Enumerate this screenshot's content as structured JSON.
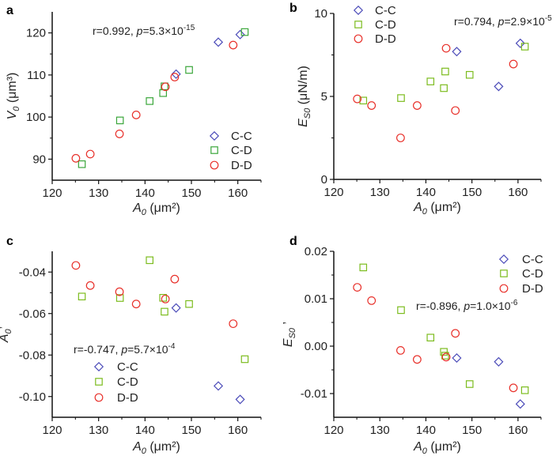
{
  "colors": {
    "C-C": "#4a4ab8",
    "C-D": "#3aa63a",
    "C-D-light": "#7cbc1e",
    "D-D": "#e8302a"
  },
  "chart_data": [
    {
      "type": "scatter",
      "panel": "a",
      "xlabel": {
        "var": "A",
        "sub": "0",
        "unit": " (μm²)"
      },
      "ylabel": {
        "var": "V",
        "sub": "0",
        "unit": " (μm³)"
      },
      "xlim": [
        120,
        165
      ],
      "ylim": [
        85,
        125
      ],
      "xticks": [
        "120",
        "130",
        "140",
        "150",
        "160"
      ],
      "yticks": [
        "90",
        "100",
        "110",
        "120"
      ],
      "annotation": {
        "r": "r=0.992, ",
        "p": "p",
        "eq": "=5.3×10",
        "exp": "-15"
      },
      "legend": "bottom-right",
      "series": [
        {
          "name": "C-C",
          "marker": "diamond",
          "x": [
            146.7,
            155.8,
            160.5
          ],
          "y": [
            110.2,
            117.8,
            119.6
          ]
        },
        {
          "name": "C-D",
          "marker": "square",
          "x": [
            126.4,
            134.6,
            141.0,
            143.9,
            144.2,
            149.5,
            161.5
          ],
          "y": [
            88.8,
            99.2,
            103.8,
            105.7,
            107.3,
            111.2,
            120.2
          ]
        },
        {
          "name": "D-D",
          "marker": "circle",
          "x": [
            125.1,
            128.2,
            134.5,
            138.1,
            144.4,
            146.4,
            159.0
          ],
          "y": [
            90.2,
            91.2,
            96.0,
            100.5,
            107.2,
            109.5,
            117.1
          ]
        }
      ]
    },
    {
      "type": "scatter",
      "panel": "b",
      "xlabel": {
        "var": "A",
        "sub": "0",
        "unit": " (μm²)"
      },
      "ylabel": {
        "var": "E",
        "sub": "S0",
        "unit": " (μN/m)"
      },
      "xlim": [
        120,
        165
      ],
      "ylim": [
        0,
        10
      ],
      "xticks": [
        "120",
        "130",
        "140",
        "150",
        "160"
      ],
      "yticks": [
        "0",
        "5",
        "10"
      ],
      "annotation": {
        "r": "r=0.794, ",
        "p": "p",
        "eq": "=2.9×10",
        "exp": "-5"
      },
      "legend": "top-left",
      "series": [
        {
          "name": "C-C",
          "marker": "diamond",
          "x": [
            146.7,
            155.8,
            160.5
          ],
          "y": [
            7.7,
            5.6,
            8.2
          ]
        },
        {
          "name": "C-D",
          "marker": "square",
          "x": [
            126.4,
            134.6,
            141.0,
            143.9,
            144.2,
            149.5,
            161.5
          ],
          "y": [
            4.75,
            4.9,
            5.9,
            5.5,
            6.5,
            6.3,
            8.0
          ]
        },
        {
          "name": "D-D",
          "marker": "circle",
          "x": [
            125.1,
            128.2,
            134.5,
            138.1,
            144.4,
            146.4,
            159.0
          ],
          "y": [
            4.85,
            4.45,
            2.5,
            4.45,
            7.9,
            4.15,
            6.95
          ]
        }
      ]
    },
    {
      "type": "scatter",
      "panel": "c",
      "xlabel": {
        "var": "A",
        "sub": "0",
        "unit": " (μm²)"
      },
      "ylabel": {
        "var": "A",
        "sub": "0",
        "unit": "’"
      },
      "xlim": [
        120,
        165
      ],
      "ylim": [
        -0.11,
        -0.03
      ],
      "xticks": [
        "120",
        "130",
        "140",
        "150",
        "160"
      ],
      "yticks": [
        "-0.10",
        "-0.08",
        "-0.06",
        "-0.04"
      ],
      "annotation": {
        "r": "r=-0.747, ",
        "p": "p",
        "eq": "=5.7×10",
        "exp": "-4"
      },
      "legend": "bottom-left",
      "series": [
        {
          "name": "C-C",
          "marker": "diamond",
          "x": [
            146.7,
            155.8,
            160.5
          ],
          "y": [
            -0.0573,
            -0.0949,
            -0.1014
          ]
        },
        {
          "name": "C-D",
          "marker": "square",
          "x": [
            126.4,
            134.6,
            141.0,
            143.9,
            144.2,
            149.5,
            161.5
          ],
          "y": [
            -0.0518,
            -0.0525,
            -0.0343,
            -0.0524,
            -0.0591,
            -0.0554,
            -0.082
          ]
        },
        {
          "name": "D-D",
          "marker": "circle",
          "x": [
            125.1,
            128.2,
            134.5,
            138.1,
            144.4,
            146.4,
            159.0
          ],
          "y": [
            -0.0368,
            -0.0465,
            -0.0495,
            -0.0554,
            -0.053,
            -0.0434,
            -0.0649
          ]
        }
      ]
    },
    {
      "type": "scatter",
      "panel": "d",
      "xlabel": {
        "var": "A",
        "sub": "0",
        "unit": " (μm²)"
      },
      "ylabel": {
        "var": "E",
        "sub": "S0",
        "unit": " ’"
      },
      "xlim": [
        120,
        165
      ],
      "ylim": [
        -0.015,
        0.02
      ],
      "xticks": [
        "120",
        "130",
        "140",
        "150",
        "160"
      ],
      "yticks": [
        "-0.01",
        "0.00",
        "0.01",
        "0.02"
      ],
      "annotation": {
        "r": "r=-0.896, ",
        "p": "p",
        "eq": "=1.0×10",
        "exp": "-6"
      },
      "legend": "top-right",
      "series": [
        {
          "name": "C-C",
          "marker": "diamond",
          "x": [
            146.7,
            155.8,
            160.5
          ],
          "y": [
            -0.0025,
            -0.0033,
            -0.0122
          ]
        },
        {
          "name": "C-D",
          "marker": "square",
          "x": [
            126.4,
            134.6,
            141.0,
            143.9,
            144.2,
            149.5,
            161.5
          ],
          "y": [
            0.0166,
            0.0076,
            0.0018,
            -0.0012,
            -0.002,
            -0.008,
            -0.0093
          ]
        },
        {
          "name": "D-D",
          "marker": "circle",
          "x": [
            125.1,
            128.2,
            134.5,
            138.1,
            144.4,
            146.4,
            159.0
          ],
          "y": [
            0.0124,
            0.0096,
            -0.0009,
            -0.0028,
            -0.0023,
            0.0027,
            -0.0088
          ]
        }
      ]
    }
  ]
}
